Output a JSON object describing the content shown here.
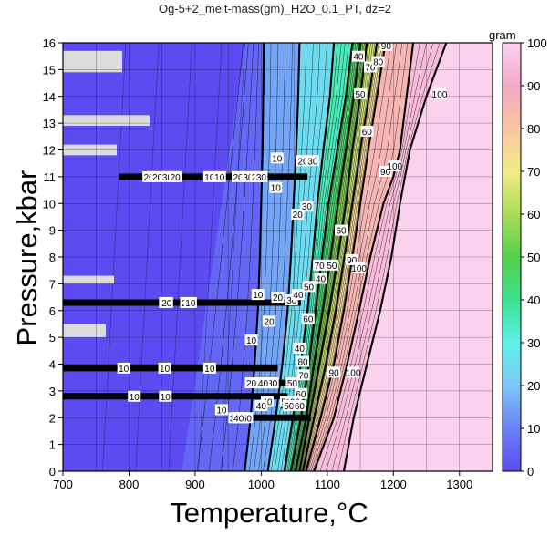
{
  "chart_data": {
    "type": "heatmap",
    "title": "Og-5+2_melt-mass(gm)_H2O_0.1_PT, dz=2",
    "xlabel": "Temperature,°C",
    "ylabel": "Pressure,kbar",
    "xlim": [
      700,
      1350
    ],
    "ylim": [
      0,
      16
    ],
    "xticks": [
      "700",
      "800",
      "900",
      "1000",
      "1100",
      "1200",
      "1300"
    ],
    "yticks": [
      "0",
      "1",
      "2",
      "3",
      "4",
      "5",
      "6",
      "7",
      "8",
      "9",
      "10",
      "11",
      "12",
      "13",
      "14",
      "15",
      "16"
    ],
    "grid": true,
    "colorbar": {
      "label": "gram",
      "range": [
        0,
        100
      ],
      "ticks": [
        "0",
        "10",
        "20",
        "30",
        "40",
        "50",
        "60",
        "70",
        "80",
        "90",
        "100"
      ],
      "colors": [
        "#5b4bf0",
        "#6a82f5",
        "#7ec7f8",
        "#5cf1e7",
        "#3be08e",
        "#57d04c",
        "#a9dc57",
        "#f3ec86",
        "#f8c6a2",
        "#f4a8c6",
        "#fbd2ee"
      ]
    },
    "contour_interval": 2,
    "labeled_levels": [
      10,
      20,
      30,
      40,
      50,
      60,
      70,
      80,
      90,
      100
    ],
    "contours": [
      {
        "level": 10,
        "points": [
          [
            975,
            0
          ],
          [
            984,
            2
          ],
          [
            990,
            4
          ],
          [
            995,
            6
          ],
          [
            998,
            8
          ],
          [
            1000,
            10
          ],
          [
            1002,
            12
          ],
          [
            1003,
            14
          ],
          [
            1004,
            16
          ]
        ]
      },
      {
        "level": 20,
        "points": [
          [
            1010,
            0
          ],
          [
            1022,
            2
          ],
          [
            1032,
            4
          ],
          [
            1040,
            6
          ],
          [
            1045,
            8
          ],
          [
            1049,
            10
          ],
          [
            1053,
            12
          ],
          [
            1056,
            14
          ],
          [
            1058,
            16
          ]
        ]
      },
      {
        "level": 30,
        "points": [
          [
            1035,
            0
          ],
          [
            1048,
            2
          ],
          [
            1060,
            4
          ],
          [
            1070,
            6
          ],
          [
            1078,
            8
          ],
          [
            1085,
            10
          ],
          [
            1094,
            12
          ],
          [
            1104,
            14
          ],
          [
            1110,
            16
          ]
        ]
      },
      {
        "level": 40,
        "points": [
          [
            1045,
            0
          ],
          [
            1060,
            2
          ],
          [
            1072,
            4
          ],
          [
            1082,
            6
          ],
          [
            1092,
            8
          ],
          [
            1102,
            10
          ],
          [
            1115,
            12
          ],
          [
            1128,
            14
          ],
          [
            1138,
            16
          ]
        ]
      },
      {
        "level": 50,
        "points": [
          [
            1052,
            0
          ],
          [
            1068,
            2
          ],
          [
            1080,
            4
          ],
          [
            1093,
            6
          ],
          [
            1105,
            8
          ],
          [
            1116,
            10
          ],
          [
            1128,
            12
          ],
          [
            1140,
            14
          ],
          [
            1150,
            16
          ]
        ]
      },
      {
        "level": 60,
        "points": [
          [
            1058,
            0
          ],
          [
            1073,
            2
          ],
          [
            1088,
            4
          ],
          [
            1103,
            6
          ],
          [
            1116,
            8
          ],
          [
            1128,
            10
          ],
          [
            1138,
            12
          ],
          [
            1150,
            14
          ],
          [
            1160,
            16
          ]
        ]
      },
      {
        "level": 70,
        "points": [
          [
            1063,
            0
          ],
          [
            1080,
            2
          ],
          [
            1098,
            4
          ],
          [
            1113,
            6
          ],
          [
            1126,
            8
          ],
          [
            1138,
            10
          ],
          [
            1150,
            12
          ],
          [
            1163,
            14
          ],
          [
            1175,
            16
          ]
        ]
      },
      {
        "level": 80,
        "points": [
          [
            1068,
            0
          ],
          [
            1090,
            2
          ],
          [
            1110,
            4
          ],
          [
            1125,
            6
          ],
          [
            1138,
            8
          ],
          [
            1150,
            10
          ],
          [
            1162,
            12
          ],
          [
            1175,
            14
          ],
          [
            1188,
            16
          ]
        ]
      },
      {
        "level": 90,
        "points": [
          [
            1080,
            0
          ],
          [
            1110,
            2
          ],
          [
            1130,
            4
          ],
          [
            1148,
            6
          ],
          [
            1165,
            8
          ],
          [
            1185,
            10
          ],
          [
            1200,
            11
          ],
          [
            1210,
            12
          ],
          [
            1220,
            14
          ],
          [
            1230,
            16
          ]
        ]
      },
      {
        "level": 100,
        "points": [
          [
            1125,
            0
          ],
          [
            1140,
            2
          ],
          [
            1160,
            4
          ],
          [
            1180,
            6
          ],
          [
            1197,
            8
          ],
          [
            1210,
            10
          ],
          [
            1225,
            12
          ],
          [
            1250,
            14
          ],
          [
            1280,
            16
          ]
        ]
      }
    ],
    "contour_labels": [
      {
        "level": 10,
        "x": 1024,
        "y": 11.7
      },
      {
        "level": 10,
        "x": 1022,
        "y": 10.6
      },
      {
        "level": 20,
        "x": 1063,
        "y": 11.6
      },
      {
        "level": 20,
        "x": 1055,
        "y": 9.6
      },
      {
        "level": 30,
        "x": 1078,
        "y": 11.6
      },
      {
        "level": 30,
        "x": 1069,
        "y": 9.9
      },
      {
        "level": 40,
        "x": 1147,
        "y": 15.5
      },
      {
        "level": 40,
        "x": 1090,
        "y": 7.2
      },
      {
        "level": 50,
        "x": 1150,
        "y": 14.1
      },
      {
        "level": 50,
        "x": 1107,
        "y": 7.7
      },
      {
        "level": 60,
        "x": 1160,
        "y": 12.7
      },
      {
        "level": 60,
        "x": 1121,
        "y": 9.0
      },
      {
        "level": 70,
        "x": 1165,
        "y": 15.1
      },
      {
        "level": 80,
        "x": 1177,
        "y": 15.3
      },
      {
        "level": 90,
        "x": 1189,
        "y": 15.9
      },
      {
        "level": 90,
        "x": 1188,
        "y": 11.2
      },
      {
        "level": 90,
        "x": 1137,
        "y": 7.9
      },
      {
        "level": 90,
        "x": 1110,
        "y": 3.7
      },
      {
        "level": 100,
        "x": 1270,
        "y": 14.1
      },
      {
        "level": 100,
        "x": 1202,
        "y": 11.4
      },
      {
        "level": 100,
        "x": 1148,
        "y": 7.6
      },
      {
        "level": 100,
        "x": 1139,
        "y": 3.7
      },
      {
        "level": 10,
        "x": 995,
        "y": 6.6
      },
      {
        "level": 10,
        "x": 985,
        "y": 4.9
      },
      {
        "level": 20,
        "x": 1025,
        "y": 6.5
      },
      {
        "level": 20,
        "x": 1012,
        "y": 5.6
      },
      {
        "level": 30,
        "x": 1046,
        "y": 6.4
      },
      {
        "level": 40,
        "x": 1056,
        "y": 6.6
      },
      {
        "level": 40,
        "x": 1058,
        "y": 4.6
      },
      {
        "level": 50,
        "x": 1072,
        "y": 6.9
      },
      {
        "level": 60,
        "x": 1071,
        "y": 5.7
      },
      {
        "level": 70,
        "x": 1088,
        "y": 7.7
      },
      {
        "level": 70,
        "x": 1064,
        "y": 3.6
      },
      {
        "level": 80,
        "x": 1063,
        "y": 4.1
      },
      {
        "level": 50,
        "x": 1047,
        "y": 3.3
      },
      {
        "level": 60,
        "x": 1060,
        "y": 2.9
      },
      {
        "level": 40,
        "x": 1009,
        "y": 2.6
      },
      {
        "level": 50,
        "x": 1038,
        "y": 2.6
      },
      {
        "level": 60,
        "x": 1051,
        "y": 2.6
      },
      {
        "level": 10,
        "x": 940,
        "y": 2.3
      }
    ],
    "artifact_bands": [
      {
        "y": 11.0,
        "x": [
          785,
          1070
        ],
        "labels": [
          {
            "text": "20",
            "x": 830
          },
          {
            "text": "20",
            "x": 843
          },
          {
            "text": "30",
            "x": 858
          },
          {
            "text": "20",
            "x": 870
          },
          {
            "text": "10",
            "x": 922
          },
          {
            "text": "10",
            "x": 937
          },
          {
            "text": "20",
            "x": 965
          },
          {
            "text": "30",
            "x": 980
          },
          {
            "text": "20",
            "x": 993
          },
          {
            "text": "30",
            "x": 1000
          }
        ]
      },
      {
        "y": 6.3,
        "x": [
          700,
          1060
        ],
        "labels": [
          {
            "text": "10",
            "x": 855
          },
          {
            "text": "20",
            "x": 857
          },
          {
            "text": "20",
            "x": 887
          },
          {
            "text": "10",
            "x": 893
          }
        ]
      },
      {
        "y": 3.85,
        "x": [
          700,
          1025
        ],
        "labels": [
          {
            "text": "10",
            "x": 792
          },
          {
            "text": "10",
            "x": 854
          },
          {
            "text": "10",
            "x": 922
          }
        ]
      },
      {
        "y": 2.8,
        "x": [
          700,
          1040
        ],
        "labels": [
          {
            "text": "10",
            "x": 808
          },
          {
            "text": "10",
            "x": 855
          }
        ]
      },
      {
        "y": 3.3,
        "x": [
          985,
          1050
        ],
        "labels": [
          {
            "text": "20",
            "x": 985
          },
          {
            "text": "20",
            "x": 1012
          },
          {
            "text": "30",
            "x": 1017
          },
          {
            "text": "40",
            "x": 1003
          }
        ]
      },
      {
        "y": 2.45,
        "x": [
          1030,
          1065
        ],
        "labels": [
          {
            "text": "40",
            "x": 1000
          },
          {
            "text": "50",
            "x": 1042
          },
          {
            "text": "60",
            "x": 1058
          }
        ]
      },
      {
        "y": 2.0,
        "x": [
          960,
          1075
        ],
        "labels": [
          {
            "text": "30",
            "x": 960
          },
          {
            "text": "60",
            "x": 973
          },
          {
            "text": "50",
            "x": 978
          },
          {
            "text": "40",
            "x": 966
          }
        ]
      }
    ]
  }
}
